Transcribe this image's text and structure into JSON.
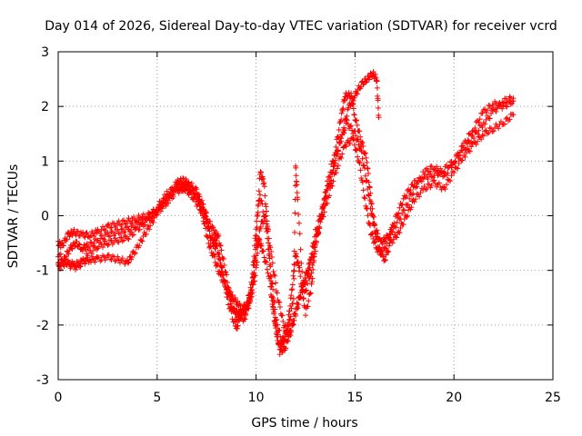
{
  "chart_data": {
    "type": "scatter",
    "title": "Day 014 of 2026, Sidereal Day-to-day VTEC variation (SDTVAR) for receiver vcrd",
    "xlabel": "GPS time / hours",
    "ylabel": "SDTVAR / TECUs",
    "xlim": [
      0,
      25
    ],
    "ylim": [
      -3,
      3
    ],
    "xticks": [
      0,
      5,
      10,
      15,
      20,
      25
    ],
    "yticks": [
      -3,
      -2,
      -1,
      0,
      1,
      2,
      3
    ],
    "grid": true,
    "marker": "plus",
    "color": "#ff0000",
    "series": [
      {
        "name": "",
        "tracks": [
          [
            [
              0.0,
              -0.5
            ],
            [
              0.2,
              -0.55
            ],
            [
              0.5,
              -0.35
            ],
            [
              0.8,
              -0.3
            ],
            [
              1.2,
              -0.35
            ],
            [
              1.6,
              -0.35
            ],
            [
              2.0,
              -0.3
            ],
            [
              2.5,
              -0.2
            ],
            [
              3.0,
              -0.15
            ],
            [
              3.5,
              -0.1
            ],
            [
              4.0,
              -0.05
            ],
            [
              4.5,
              0.0
            ],
            [
              5.0,
              0.1
            ],
            [
              5.5,
              0.35
            ],
            [
              6.0,
              0.6
            ],
            [
              6.3,
              0.65
            ],
            [
              6.6,
              0.6
            ],
            [
              7.0,
              0.45
            ],
            [
              7.3,
              0.2
            ],
            [
              7.6,
              -0.1
            ],
            [
              7.9,
              -0.3
            ],
            [
              8.1,
              -0.4
            ],
            [
              8.4,
              -0.9
            ],
            [
              8.7,
              -1.5
            ],
            [
              9.0,
              -1.9
            ],
            [
              9.3,
              -1.7
            ],
            [
              9.6,
              -1.6
            ],
            [
              9.8,
              -1.4
            ],
            [
              10.0,
              -0.5
            ],
            [
              10.2,
              0.8
            ],
            [
              10.4,
              0.6
            ],
            [
              10.6,
              -0.3
            ],
            [
              10.8,
              -1.5
            ],
            [
              11.0,
              -2.1
            ],
            [
              11.2,
              -2.4
            ],
            [
              11.4,
              -2.3
            ],
            [
              11.6,
              -2.0
            ],
            [
              11.8,
              -1.4
            ],
            [
              12.0,
              -0.7
            ],
            [
              12.2,
              -1.0
            ],
            [
              12.5,
              -1.8
            ],
            [
              12.8,
              -1.3
            ],
            [
              13.0,
              -0.5
            ],
            [
              13.3,
              0.0
            ],
            [
              13.6,
              0.6
            ],
            [
              14.0,
              1.2
            ],
            [
              14.3,
              1.8
            ],
            [
              14.5,
              2.2
            ],
            [
              14.8,
              2.2
            ],
            [
              15.0,
              1.8
            ],
            [
              15.3,
              1.4
            ],
            [
              15.6,
              1.0
            ],
            [
              15.8,
              0.3
            ],
            [
              16.0,
              -0.2
            ],
            [
              16.3,
              -0.5
            ],
            [
              16.6,
              -0.4
            ],
            [
              17.0,
              -0.2
            ],
            [
              17.5,
              0.1
            ],
            [
              18.0,
              0.5
            ],
            [
              18.5,
              0.8
            ],
            [
              19.0,
              0.9
            ],
            [
              19.5,
              0.7
            ],
            [
              20.0,
              1.0
            ],
            [
              20.5,
              1.3
            ],
            [
              21.0,
              1.6
            ],
            [
              21.5,
              1.9
            ],
            [
              22.0,
              2.05
            ],
            [
              22.5,
              2.0
            ],
            [
              23.0,
              2.1
            ]
          ],
          [
            [
              0.0,
              -0.9
            ],
            [
              0.3,
              -0.8
            ],
            [
              0.6,
              -0.6
            ],
            [
              0.9,
              -0.5
            ],
            [
              1.2,
              -0.6
            ],
            [
              1.5,
              -0.55
            ],
            [
              2.0,
              -0.45
            ],
            [
              2.5,
              -0.35
            ],
            [
              3.0,
              -0.3
            ],
            [
              3.5,
              -0.25
            ],
            [
              4.0,
              -0.15
            ],
            [
              4.5,
              -0.05
            ],
            [
              5.0,
              0.15
            ],
            [
              5.5,
              0.4
            ],
            [
              6.0,
              0.55
            ],
            [
              6.5,
              0.5
            ],
            [
              7.0,
              0.35
            ],
            [
              7.4,
              0.05
            ],
            [
              7.7,
              -0.4
            ],
            [
              8.0,
              -0.5
            ],
            [
              8.3,
              -1.0
            ],
            [
              8.6,
              -1.6
            ],
            [
              9.0,
              -2.1
            ],
            [
              9.2,
              -1.8
            ],
            [
              9.5,
              -1.7
            ],
            [
              9.8,
              -1.2
            ],
            [
              10.0,
              -0.2
            ],
            [
              10.2,
              0.4
            ],
            [
              10.5,
              -0.2
            ],
            [
              10.8,
              -1.2
            ],
            [
              11.0,
              -1.9
            ],
            [
              11.3,
              -2.3
            ],
            [
              11.6,
              -2.1
            ],
            [
              11.9,
              -1.5
            ],
            [
              12.0,
              0.9
            ],
            [
              12.1,
              0.3
            ],
            [
              12.4,
              -1.5
            ],
            [
              12.8,
              -1.0
            ],
            [
              13.2,
              -0.2
            ],
            [
              13.6,
              0.5
            ],
            [
              14.0,
              1.0
            ],
            [
              14.4,
              1.6
            ],
            [
              14.7,
              2.0
            ],
            [
              15.0,
              2.2
            ],
            [
              15.3,
              2.4
            ],
            [
              15.6,
              2.5
            ],
            [
              15.9,
              2.6
            ],
            [
              16.1,
              2.5
            ],
            [
              16.2,
              1.8
            ]
          ],
          [
            [
              0.0,
              -0.95
            ],
            [
              0.4,
              -0.85
            ],
            [
              0.8,
              -0.9
            ],
            [
              1.2,
              -0.85
            ],
            [
              1.6,
              -0.8
            ],
            [
              2.0,
              -0.8
            ],
            [
              2.5,
              -0.75
            ],
            [
              3.0,
              -0.8
            ],
            [
              3.5,
              -0.85
            ],
            [
              3.8,
              -0.7
            ],
            [
              4.2,
              -0.45
            ],
            [
              4.6,
              -0.2
            ],
            [
              5.0,
              0.05
            ],
            [
              5.5,
              0.25
            ],
            [
              6.0,
              0.45
            ],
            [
              6.4,
              0.5
            ],
            [
              6.8,
              0.35
            ],
            [
              7.2,
              0.1
            ],
            [
              7.5,
              -0.1
            ],
            [
              7.8,
              -0.5
            ],
            [
              8.0,
              -0.6
            ],
            [
              8.4,
              -1.2
            ],
            [
              8.8,
              -1.7
            ],
            [
              9.1,
              -1.8
            ],
            [
              9.4,
              -1.9
            ],
            [
              9.7,
              -1.5
            ],
            [
              9.9,
              -1.0
            ],
            [
              10.1,
              -0.4
            ],
            [
              10.3,
              -0.6
            ],
            [
              10.6,
              -1.0
            ],
            [
              10.9,
              -1.8
            ],
            [
              11.2,
              -2.5
            ],
            [
              11.5,
              -2.4
            ],
            [
              11.8,
              -2.0
            ],
            [
              12.1,
              -1.6
            ],
            [
              12.4,
              -1.2
            ],
            [
              12.7,
              -0.9
            ],
            [
              13.0,
              -0.3
            ],
            [
              13.4,
              0.2
            ],
            [
              13.8,
              0.7
            ],
            [
              14.2,
              1.3
            ],
            [
              14.6,
              1.7
            ],
            [
              15.0,
              1.5
            ],
            [
              15.3,
              1.2
            ],
            [
              15.6,
              0.6
            ],
            [
              15.9,
              -0.1
            ],
            [
              16.2,
              -0.6
            ],
            [
              16.5,
              -0.8
            ],
            [
              16.8,
              -0.5
            ],
            [
              17.2,
              -0.3
            ],
            [
              17.6,
              0.0
            ],
            [
              18.0,
              0.3
            ],
            [
              18.5,
              0.5
            ],
            [
              19.0,
              0.6
            ],
            [
              19.5,
              0.5
            ],
            [
              20.0,
              0.8
            ],
            [
              20.5,
              1.1
            ],
            [
              21.0,
              1.3
            ],
            [
              21.5,
              1.5
            ],
            [
              22.0,
              1.6
            ],
            [
              22.5,
              1.7
            ],
            [
              23.0,
              1.85
            ]
          ],
          [
            [
              0.0,
              -0.7
            ],
            [
              0.5,
              -0.9
            ],
            [
              1.0,
              -0.95
            ],
            [
              1.5,
              -0.7
            ],
            [
              2.0,
              -0.55
            ],
            [
              2.5,
              -0.5
            ],
            [
              3.0,
              -0.45
            ],
            [
              3.5,
              -0.4
            ],
            [
              4.0,
              -0.25
            ],
            [
              4.5,
              -0.1
            ],
            [
              5.0,
              0.1
            ],
            [
              5.5,
              0.3
            ],
            [
              6.0,
              0.5
            ],
            [
              6.5,
              0.55
            ],
            [
              7.0,
              0.4
            ],
            [
              7.3,
              0.0
            ],
            [
              7.6,
              -0.5
            ],
            [
              7.9,
              -0.8
            ],
            [
              8.2,
              -1.1
            ],
            [
              8.5,
              -1.3
            ],
            [
              8.8,
              -1.5
            ],
            [
              9.1,
              -1.6
            ],
            [
              9.4,
              -1.8
            ],
            [
              9.7,
              -1.6
            ],
            [
              10.0,
              -1.0
            ],
            [
              10.2,
              -0.2
            ],
            [
              10.5,
              0.0
            ],
            [
              10.8,
              -0.8
            ],
            [
              11.1,
              -1.5
            ],
            [
              11.4,
              -2.0
            ],
            [
              11.7,
              -2.2
            ],
            [
              12.0,
              -1.8
            ],
            [
              12.3,
              -1.4
            ],
            [
              12.6,
              -1.1
            ],
            [
              12.9,
              -0.6
            ],
            [
              13.3,
              -0.1
            ],
            [
              13.7,
              0.4
            ],
            [
              14.1,
              0.9
            ],
            [
              14.5,
              1.3
            ],
            [
              14.9,
              1.4
            ],
            [
              15.2,
              1.0
            ],
            [
              15.5,
              0.3
            ],
            [
              15.8,
              -0.3
            ],
            [
              16.1,
              -0.6
            ],
            [
              16.4,
              -0.7
            ],
            [
              16.8,
              -0.3
            ],
            [
              17.2,
              0.1
            ],
            [
              17.6,
              0.4
            ],
            [
              18.0,
              0.6
            ],
            [
              18.5,
              0.7
            ],
            [
              19.0,
              0.75
            ],
            [
              19.5,
              0.85
            ],
            [
              20.0,
              1.0
            ],
            [
              20.5,
              1.2
            ],
            [
              21.0,
              1.45
            ],
            [
              21.5,
              1.7
            ],
            [
              22.0,
              1.9
            ],
            [
              22.5,
              2.1
            ],
            [
              23.0,
              2.15
            ]
          ]
        ]
      }
    ]
  }
}
